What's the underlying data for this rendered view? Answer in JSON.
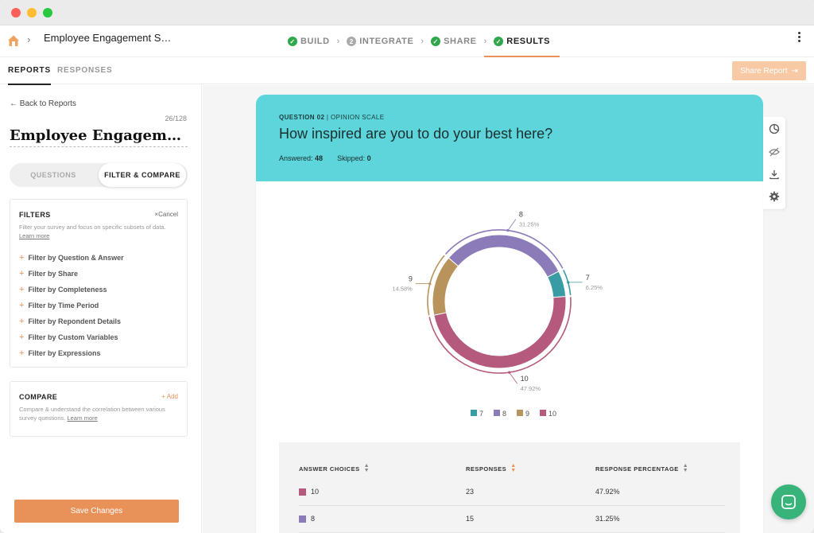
{
  "breadcrumb": {
    "survey_name": "Employee Engagement S…"
  },
  "steps": [
    {
      "label": "BUILD",
      "state": "done"
    },
    {
      "label": "INTEGRATE",
      "state": "pending",
      "number": "2"
    },
    {
      "label": "SHARE",
      "state": "done"
    },
    {
      "label": "RESULTS",
      "state": "done"
    }
  ],
  "subnav": {
    "tabs": [
      "REPORTS",
      "RESPONSES"
    ],
    "share_label": "Share Report"
  },
  "sidebar": {
    "back_label": "Back to Reports",
    "count": "26/128",
    "report_title": "Employee Engagement Survey",
    "toggle": {
      "left": "QUESTIONS",
      "right": "FILTER & COMPARE"
    },
    "filters": {
      "title": "FILTERS",
      "cancel": "Cancel",
      "desc": "Filter your survey and focus on specific subsets of data.",
      "learn_more": "Learn more",
      "items": [
        "Filter by Question & Answer",
        "Filter by Share",
        "Filter by Completeness",
        "Filter by Time Period",
        "Filter by Repondent Details",
        "Filter by Custom Variables",
        "Filter by Expressions"
      ]
    },
    "compare": {
      "title": "COMPARE",
      "add": "Add",
      "desc": "Compare & understand the correlation between various survey questions.",
      "learn_more": "Learn more"
    },
    "save_label": "Save Changes"
  },
  "question": {
    "number": "QUESTION 02",
    "type": "OPINION SCALE",
    "text": "How inspired are you to do your best here?",
    "answered_label": "Answered:",
    "answered": "48",
    "skipped_label": "Skipped:",
    "skipped": "0"
  },
  "chart_data": {
    "type": "pie",
    "categories": [
      "7",
      "8",
      "9",
      "10"
    ],
    "values": [
      3,
      15,
      7,
      23
    ],
    "percentages": [
      "6.25%",
      "31.25%",
      "14.58%",
      "47.92%"
    ],
    "colors": [
      "#3a9ca3",
      "#8b7bb8",
      "#b8945c",
      "#b55a7c"
    ],
    "legend_position": "bottom"
  },
  "table": {
    "headers": [
      "ANSWER CHOICES",
      "RESPONSES",
      "RESPONSE PERCENTAGE"
    ],
    "rows": [
      {
        "choice": "10",
        "responses": "23",
        "percentage": "47.92%",
        "color": "#b55a7c"
      },
      {
        "choice": "8",
        "responses": "15",
        "percentage": "31.25%",
        "color": "#8b7bb8"
      }
    ]
  }
}
